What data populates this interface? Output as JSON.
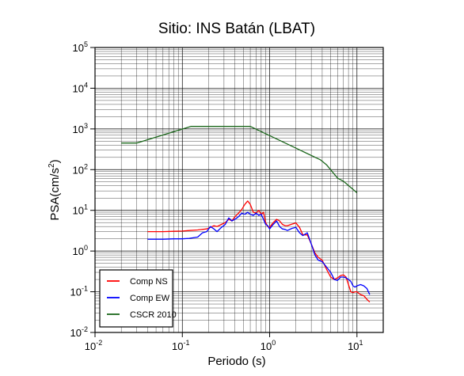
{
  "chart_data": {
    "type": "line",
    "title": "Sitio: INS Batán (LBAT)",
    "xlabel": "Periodo (s)",
    "ylabel": "PSA(cm/s",
    "ylabel_sup": "2",
    "ylabel_close": ")",
    "x_scale": "log",
    "y_scale": "log",
    "xlim": [
      0.01,
      20
    ],
    "ylim": [
      0.01,
      100000
    ],
    "grid": true,
    "legend_position": "bottom-left",
    "x_ticks": [
      {
        "value": 0.01,
        "base": "10",
        "exp": "-2"
      },
      {
        "value": 0.1,
        "base": "10",
        "exp": "-1"
      },
      {
        "value": 1,
        "base": "10",
        "exp": "0"
      },
      {
        "value": 10,
        "base": "10",
        "exp": "1"
      }
    ],
    "y_ticks": [
      {
        "value": 0.01,
        "base": "10",
        "exp": "-2"
      },
      {
        "value": 0.1,
        "base": "10",
        "exp": "-1"
      },
      {
        "value": 1,
        "base": "10",
        "exp": "0"
      },
      {
        "value": 10,
        "base": "10",
        "exp": "1"
      },
      {
        "value": 100,
        "base": "10",
        "exp": "2"
      },
      {
        "value": 1000,
        "base": "10",
        "exp": "3"
      },
      {
        "value": 10000,
        "base": "10",
        "exp": "4"
      },
      {
        "value": 100000,
        "base": "10",
        "exp": "5"
      }
    ],
    "series": [
      {
        "name": "Comp NS",
        "color": "#ff0000",
        "x": [
          0.04,
          0.06,
          0.08,
          0.1,
          0.12,
          0.15,
          0.17,
          0.19,
          0.21,
          0.23,
          0.25,
          0.28,
          0.31,
          0.34,
          0.37,
          0.4,
          0.44,
          0.48,
          0.52,
          0.56,
          0.6,
          0.65,
          0.7,
          0.75,
          0.8,
          0.85,
          0.9,
          0.95,
          1.0,
          1.1,
          1.2,
          1.3,
          1.4,
          1.5,
          1.6,
          1.8,
          2.0,
          2.2,
          2.4,
          2.7,
          3.0,
          3.3,
          3.6,
          4.0,
          4.5,
          5.0,
          5.5,
          6.0,
          6.5,
          7.0,
          7.5,
          8.0,
          8.5,
          9.0,
          9.5,
          10.0,
          11.0,
          12.0,
          13.0,
          14.0
        ],
        "y": [
          3.0,
          3.0,
          3.05,
          3.1,
          3.2,
          3.3,
          3.4,
          3.5,
          3.8,
          4.2,
          4.0,
          4.5,
          5.0,
          6.0,
          5.5,
          7.0,
          8.5,
          10.5,
          14.0,
          17.0,
          14.0,
          9.0,
          8.5,
          10.0,
          8.0,
          9.0,
          5.0,
          4.0,
          3.8,
          5.0,
          6.0,
          5.5,
          4.5,
          4.2,
          4.2,
          4.6,
          4.9,
          3.8,
          2.5,
          2.5,
          1.5,
          0.9,
          0.7,
          0.6,
          0.35,
          0.23,
          0.2,
          0.22,
          0.25,
          0.26,
          0.23,
          0.15,
          0.1,
          0.095,
          0.1,
          0.1,
          0.085,
          0.08,
          0.065,
          0.056
        ]
      },
      {
        "name": "Comp EW",
        "color": "#0000ff",
        "x": [
          0.04,
          0.06,
          0.08,
          0.1,
          0.12,
          0.15,
          0.17,
          0.19,
          0.21,
          0.23,
          0.25,
          0.28,
          0.31,
          0.34,
          0.37,
          0.4,
          0.44,
          0.48,
          0.52,
          0.56,
          0.6,
          0.65,
          0.7,
          0.75,
          0.8,
          0.85,
          0.9,
          0.95,
          1.0,
          1.1,
          1.2,
          1.3,
          1.4,
          1.5,
          1.6,
          1.8,
          2.0,
          2.2,
          2.4,
          2.7,
          3.0,
          3.3,
          3.6,
          4.0,
          4.5,
          5.0,
          5.5,
          6.0,
          6.5,
          7.0,
          7.5,
          8.0,
          8.5,
          9.0,
          9.5,
          10.0,
          11.0,
          12.0,
          13.0,
          14.0
        ],
        "y": [
          1.95,
          1.95,
          2.0,
          2.0,
          2.05,
          2.2,
          2.8,
          3.0,
          4.0,
          3.5,
          3.0,
          3.8,
          4.5,
          6.5,
          5.5,
          6.0,
          7.0,
          8.5,
          8.0,
          9.0,
          8.0,
          7.5,
          8.5,
          7.5,
          8.0,
          6.0,
          4.5,
          4.2,
          3.5,
          4.5,
          5.5,
          4.0,
          3.5,
          3.4,
          3.2,
          3.6,
          3.8,
          2.8,
          2.4,
          2.8,
          1.5,
          0.8,
          0.6,
          0.55,
          0.4,
          0.3,
          0.2,
          0.19,
          0.23,
          0.23,
          0.22,
          0.2,
          0.18,
          0.14,
          0.13,
          0.14,
          0.15,
          0.14,
          0.12,
          0.085
        ]
      },
      {
        "name": "CSCR 2010",
        "color": "#1a661a",
        "x": [
          0.02,
          0.03,
          0.125,
          0.6,
          3.8,
          4.5,
          6.0,
          7.0,
          10.0
        ],
        "y": [
          450,
          450,
          1150,
          1150,
          175,
          130,
          62,
          52,
          27
        ]
      }
    ]
  }
}
